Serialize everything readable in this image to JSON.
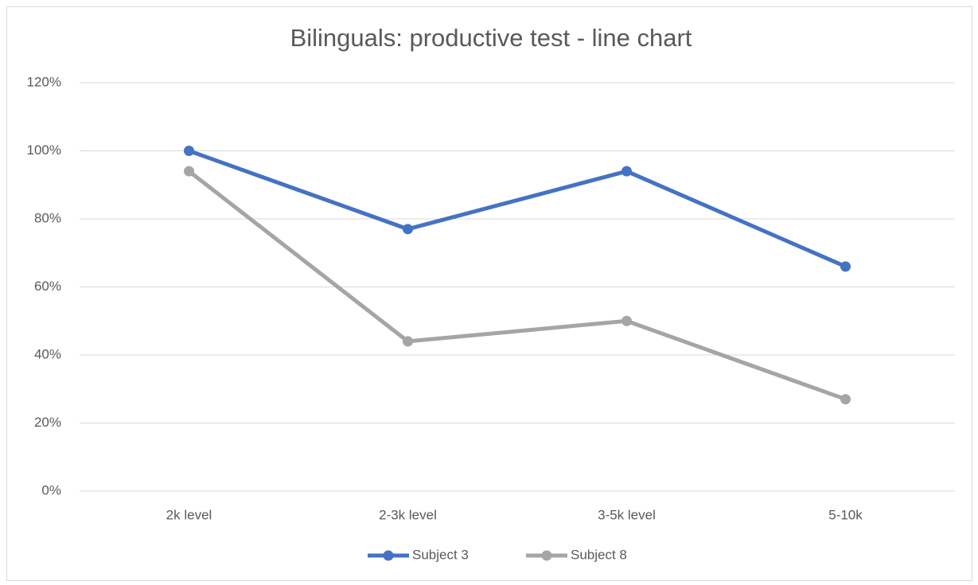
{
  "chart_data": {
    "type": "line",
    "title": "Bilinguals: productive test - line chart",
    "categories": [
      "2k level",
      "2-3k level",
      "3-5k level",
      "5-10k"
    ],
    "series": [
      {
        "name": "Subject 3",
        "color": "#4472c4",
        "values": [
          100,
          77,
          94,
          66
        ]
      },
      {
        "name": "Subject 8",
        "color": "#a5a5a5",
        "values": [
          94,
          44,
          50,
          27
        ]
      }
    ],
    "ylim": [
      0,
      120
    ],
    "yticks": [
      {
        "value": 0,
        "label": "0%"
      },
      {
        "value": 20,
        "label": "20%"
      },
      {
        "value": 40,
        "label": "40%"
      },
      {
        "value": 60,
        "label": "60%"
      },
      {
        "value": 80,
        "label": "80%"
      },
      {
        "value": 100,
        "label": "100%"
      },
      {
        "value": 120,
        "label": "120%"
      }
    ],
    "grid": true,
    "legend": "bottom"
  }
}
